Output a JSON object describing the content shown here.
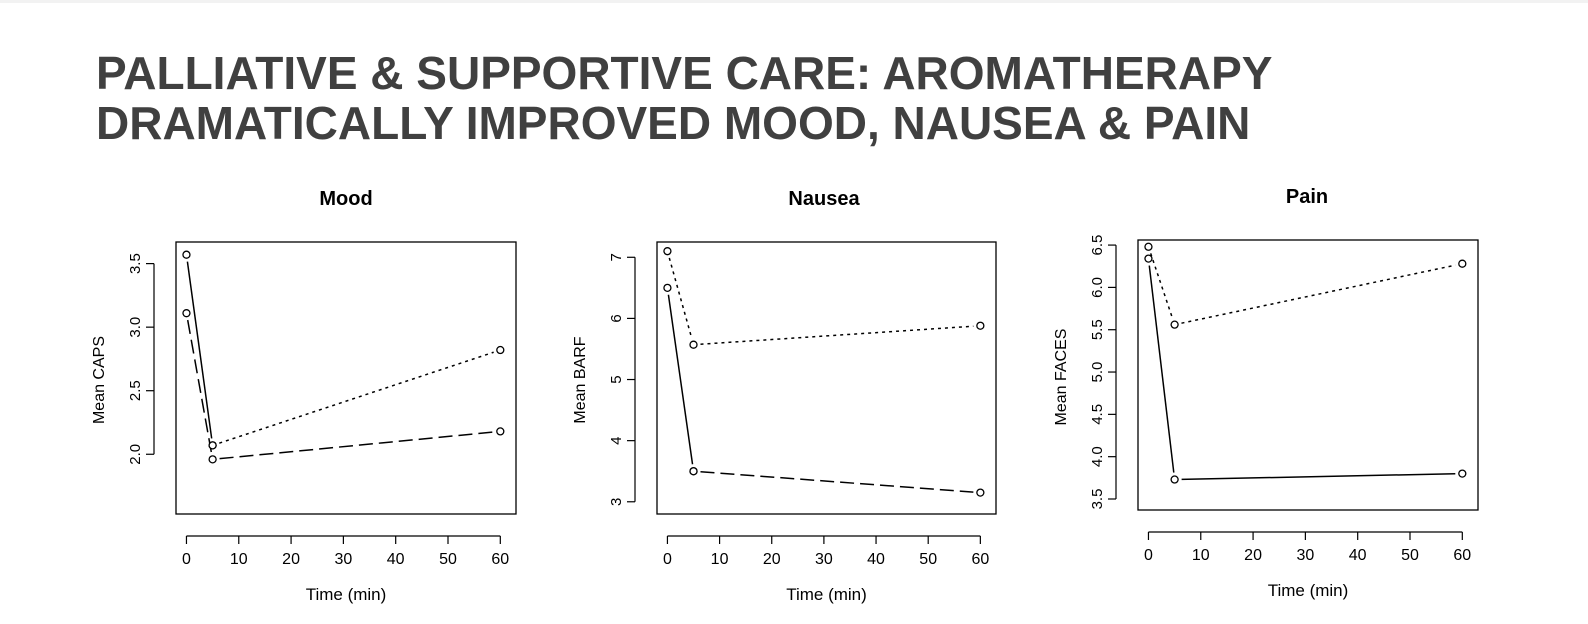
{
  "slide": {
    "title_lines": [
      "PALLIATIVE & SUPPORTIVE CARE: AROMATHERAPY",
      "DRAMATICALLY IMPROVED MOOD, NAUSEA & PAIN"
    ]
  },
  "chart_data": [
    {
      "type": "line",
      "title": "Mood",
      "xlabel": "Time (min)",
      "ylabel": "Mean CAPS",
      "xlim": [
        -2,
        63
      ],
      "ylim": [
        1.53,
        3.67
      ],
      "xticks": [
        0,
        10,
        20,
        30,
        40,
        50,
        60
      ],
      "yticks": [
        2.0,
        2.5,
        3.0,
        3.5
      ],
      "ytick_labels": [
        "2.0",
        "2.5",
        "3.0",
        "3.5"
      ],
      "grid": false,
      "series": [
        {
          "style": "solid",
          "x": [
            0,
            5
          ],
          "y": [
            3.57,
            2.07
          ]
        },
        {
          "style": "dashed",
          "x": [
            0,
            5,
            60
          ],
          "y": [
            3.11,
            1.96,
            2.18
          ]
        },
        {
          "style": "dotted",
          "x": [
            5,
            60
          ],
          "y": [
            2.07,
            2.82
          ]
        }
      ]
    },
    {
      "type": "line",
      "title": "Nausea",
      "xlabel": "Time (min)",
      "ylabel": "Mean BARF",
      "xlim": [
        -2,
        63
      ],
      "ylim": [
        2.8,
        7.25
      ],
      "xticks": [
        0,
        10,
        20,
        30,
        40,
        50,
        60
      ],
      "yticks": [
        3,
        4,
        5,
        6,
        7
      ],
      "ytick_labels": [
        "3",
        "4",
        "5",
        "6",
        "7"
      ],
      "grid": false,
      "series": [
        {
          "style": "solid",
          "x": [
            0,
            5
          ],
          "y": [
            6.5,
            3.5
          ]
        },
        {
          "style": "dashed",
          "x": [
            5,
            60
          ],
          "y": [
            3.5,
            3.15
          ]
        },
        {
          "style": "dotted",
          "x": [
            0,
            5,
            60
          ],
          "y": [
            7.1,
            5.57,
            5.88
          ]
        }
      ]
    },
    {
      "type": "line",
      "title": "Pain",
      "xlabel": "Time (min)",
      "ylabel": "Mean FACES",
      "xlim": [
        -2,
        63
      ],
      "ylim": [
        3.37,
        6.56
      ],
      "xticks": [
        0,
        10,
        20,
        30,
        40,
        50,
        60
      ],
      "yticks": [
        3.5,
        4.0,
        4.5,
        5.0,
        5.5,
        6.0,
        6.5
      ],
      "ytick_labels": [
        "3.5",
        "4.0",
        "4.5",
        "5.0",
        "5.5",
        "6.0",
        "6.5"
      ],
      "grid": false,
      "series": [
        {
          "style": "solid",
          "x": [
            0,
            5,
            60
          ],
          "y": [
            6.34,
            3.73,
            3.8
          ]
        },
        {
          "style": "dotted",
          "x": [
            0,
            5,
            60
          ],
          "y": [
            6.48,
            5.56,
            6.28
          ]
        }
      ]
    }
  ]
}
